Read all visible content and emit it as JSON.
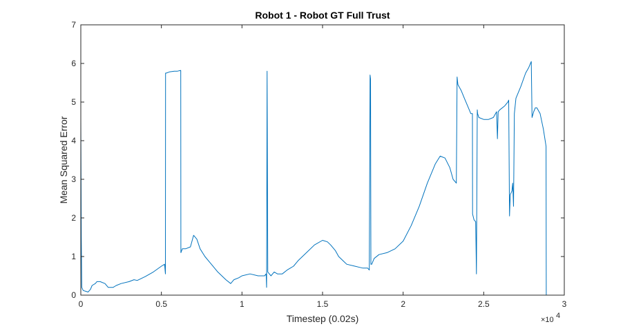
{
  "chart_data": {
    "type": "line",
    "title": "Robot 1 - Robot GT Full Trust",
    "xlabel": "Timestep (0.02s)",
    "ylabel": "Mean Squared Error",
    "x_exponent_prefix": "×10",
    "x_exponent_power": "4",
    "xlim": [
      0,
      30000
    ],
    "ylim": [
      0,
      7
    ],
    "x_ticks": [
      0,
      5000,
      10000,
      15000,
      20000,
      25000,
      30000
    ],
    "x_tick_labels": [
      "0",
      "0.5",
      "1",
      "1.5",
      "2",
      "2.5",
      "3"
    ],
    "y_ticks": [
      0,
      1,
      2,
      3,
      4,
      5,
      6,
      7
    ],
    "y_tick_labels": [
      "0",
      "1",
      "2",
      "3",
      "4",
      "5",
      "6",
      "7"
    ],
    "grid": false,
    "line_color": "#0072BD",
    "series": [
      {
        "x": [
          0,
          30,
          60,
          150,
          300,
          450,
          600,
          700,
          900,
          1000,
          1200,
          1500,
          1700,
          1800,
          2000,
          2200,
          2500,
          3000,
          3300,
          3500,
          4000,
          4500,
          5000,
          5200,
          5250,
          5260,
          5300,
          5500,
          5800,
          6000,
          6200,
          6210,
          6300,
          6500,
          6800,
          7000,
          7200,
          7400,
          7700,
          8000,
          8500,
          9000,
          9300,
          9500,
          9800,
          10000,
          10500,
          11000,
          11400,
          11500,
          11530,
          11560,
          11600,
          11700,
          11800,
          12000,
          12200,
          12500,
          12800,
          13000,
          13200,
          13500,
          14000,
          14500,
          15000,
          15300,
          15500,
          15800,
          16000,
          16500,
          17000,
          17300,
          17500,
          17800,
          17900,
          17950,
          17980,
          18000,
          18050,
          18200,
          18500,
          19000,
          19500,
          20000,
          20500,
          21000,
          21500,
          22000,
          22300,
          22600,
          22900,
          23100,
          23300,
          23350,
          23360,
          23400,
          23600,
          23800,
          24000,
          24200,
          24300,
          24310,
          24400,
          24500,
          24550,
          24600,
          24620,
          24700,
          25000,
          25300,
          25600,
          25800,
          25850,
          25900,
          26000,
          26300,
          26500,
          26550,
          26600,
          26650,
          26750,
          26800,
          26850,
          26900,
          27000,
          27300,
          27600,
          27800,
          27900,
          27950,
          28000,
          28100,
          28200,
          28300,
          28500,
          28700,
          28850,
          28870,
          28880
        ],
        "y": [
          4.6,
          1.5,
          0.2,
          0.12,
          0.1,
          0.08,
          0.15,
          0.25,
          0.3,
          0.35,
          0.35,
          0.3,
          0.2,
          0.2,
          0.2,
          0.25,
          0.3,
          0.35,
          0.4,
          0.38,
          0.48,
          0.6,
          0.75,
          0.8,
          0.55,
          5.75,
          5.75,
          5.78,
          5.8,
          5.8,
          5.82,
          1.1,
          1.2,
          1.2,
          1.25,
          1.55,
          1.45,
          1.2,
          1.0,
          0.85,
          0.6,
          0.4,
          0.3,
          0.4,
          0.45,
          0.5,
          0.55,
          0.5,
          0.5,
          0.55,
          0.2,
          5.8,
          0.6,
          0.55,
          0.5,
          0.6,
          0.55,
          0.55,
          0.65,
          0.7,
          0.75,
          0.9,
          1.1,
          1.3,
          1.42,
          1.38,
          1.3,
          1.15,
          1.0,
          0.8,
          0.75,
          0.72,
          0.7,
          0.7,
          0.65,
          5.7,
          5.6,
          0.8,
          0.8,
          0.95,
          1.05,
          1.1,
          1.2,
          1.4,
          1.8,
          2.3,
          2.9,
          3.4,
          3.6,
          3.55,
          3.3,
          3.0,
          2.9,
          5.65,
          5.6,
          5.45,
          5.3,
          5.1,
          4.9,
          4.7,
          4.7,
          2.1,
          1.95,
          1.9,
          0.55,
          4.8,
          4.7,
          4.6,
          4.55,
          4.55,
          4.6,
          4.75,
          4.05,
          4.75,
          4.8,
          4.9,
          5.0,
          5.05,
          2.05,
          2.6,
          2.7,
          2.9,
          2.3,
          4.7,
          5.1,
          5.4,
          5.75,
          5.9,
          6.0,
          6.05,
          4.6,
          4.75,
          4.85,
          4.85,
          4.7,
          4.3,
          3.9,
          3.85,
          0
        ]
      }
    ]
  }
}
